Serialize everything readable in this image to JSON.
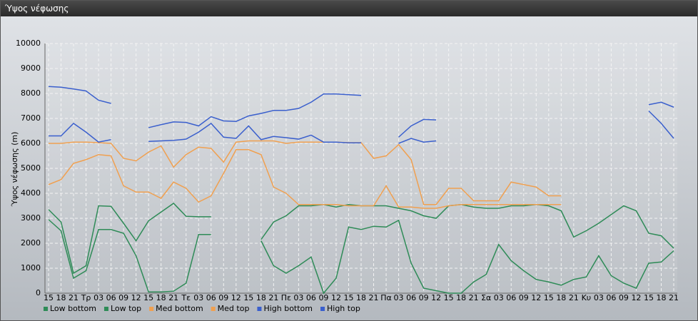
{
  "window_title": "Ύψος νέφωσης",
  "chart_data": {
    "type": "line",
    "ylabel": "Ύψος νέφωσης (m)",
    "categories": [
      "15",
      "18",
      "21",
      "Τρ",
      "03",
      "06",
      "09",
      "12",
      "15",
      "18",
      "21",
      "Τε",
      "03",
      "06",
      "09",
      "12",
      "15",
      "18",
      "21",
      "Πε",
      "03",
      "06",
      "09",
      "12",
      "15",
      "18",
      "21",
      "Πα",
      "03",
      "06",
      "09",
      "12",
      "15",
      "18",
      "21",
      "Σα",
      "03",
      "06",
      "09",
      "12",
      "15",
      "18",
      "21",
      "Κυ",
      "03",
      "06",
      "09",
      "12",
      "15",
      "18",
      "21"
    ],
    "ylim": [
      0,
      10000
    ],
    "yticks": [
      0,
      1000,
      2000,
      3000,
      4000,
      5000,
      6000,
      7000,
      8000,
      9000,
      10000
    ],
    "grid": true,
    "series": [
      {
        "name": "Low bottom",
        "color": "#2e8b57",
        "values": [
          2950,
          2500,
          600,
          900,
          2550,
          2550,
          2400,
          1500,
          50,
          50,
          80,
          400,
          2350,
          2350,
          null,
          null,
          null,
          2100,
          1100,
          800,
          1100,
          1450,
          0,
          600,
          2650,
          2550,
          2680,
          2650,
          2920,
          1200,
          200,
          100,
          0,
          0,
          450,
          750,
          1950,
          1300,
          900,
          550,
          450,
          320,
          550,
          650,
          1500,
          700,
          400,
          200,
          1200,
          1250,
          1700
        ]
      },
      {
        "name": "Low top",
        "color": "#2e8b57",
        "values": [
          3350,
          2850,
          800,
          1100,
          3500,
          3480,
          2800,
          2100,
          2900,
          3250,
          3600,
          3080,
          3060,
          3060,
          null,
          null,
          null,
          2150,
          2850,
          3100,
          3500,
          3500,
          3550,
          3450,
          3550,
          3500,
          3500,
          3500,
          3400,
          3300,
          3100,
          3000,
          3500,
          3550,
          3450,
          3400,
          3400,
          3500,
          3500,
          3550,
          3500,
          3300,
          2250,
          2500,
          2800,
          3150,
          3500,
          3300,
          2400,
          2300,
          1800
        ]
      },
      {
        "name": "Med bottom",
        "color": "#f0a050",
        "values": [
          4350,
          4550,
          5200,
          5350,
          5550,
          5500,
          4300,
          4050,
          4050,
          3800,
          4450,
          4200,
          3650,
          3900,
          4800,
          5750,
          5750,
          5550,
          4250,
          4000,
          3550,
          3550,
          3550,
          3550,
          3500,
          3500,
          3500,
          4300,
          3450,
          3450,
          3400,
          3400,
          3500,
          3550,
          3550,
          3550,
          3550,
          3550,
          3550,
          3550,
          3550,
          3550,
          null,
          null,
          null,
          null,
          null,
          null,
          null,
          null,
          null
        ]
      },
      {
        "name": "Med top",
        "color": "#f0a050",
        "values": [
          6000,
          6000,
          6050,
          6050,
          6030,
          6000,
          5400,
          5300,
          5650,
          5900,
          5050,
          5550,
          5850,
          5800,
          5250,
          6050,
          6100,
          6100,
          6100,
          6000,
          6050,
          6050,
          6050,
          6050,
          6030,
          6030,
          5400,
          5500,
          5950,
          5350,
          3550,
          3550,
          4200,
          4200,
          3700,
          3700,
          3700,
          4450,
          4350,
          4250,
          3900,
          3900,
          null,
          null,
          null,
          null,
          null,
          null,
          null,
          null,
          null
        ]
      },
      {
        "name": "High bottom",
        "color": "#3a5fcd",
        "values": [
          6300,
          6300,
          6800,
          6450,
          6050,
          6150,
          null,
          null,
          6080,
          6100,
          6120,
          6170,
          6450,
          6800,
          6250,
          6200,
          6700,
          6150,
          6280,
          6230,
          6170,
          6330,
          6050,
          6050,
          6020,
          6020,
          null,
          null,
          6000,
          6200,
          6050,
          6100,
          null,
          null,
          null,
          null,
          null,
          null,
          null,
          null,
          null,
          null,
          null,
          null,
          null,
          null,
          null,
          null,
          7300,
          6800,
          6200
        ]
      },
      {
        "name": "High top",
        "color": "#3a5fcd",
        "values": [
          8280,
          8250,
          8180,
          8100,
          7730,
          7600,
          null,
          null,
          6630,
          6750,
          6860,
          6840,
          6700,
          7070,
          6900,
          6880,
          7100,
          7200,
          7320,
          7320,
          7400,
          7650,
          7980,
          7980,
          7950,
          7920,
          null,
          null,
          6250,
          6700,
          6960,
          6940,
          null,
          null,
          null,
          null,
          null,
          null,
          null,
          null,
          null,
          null,
          null,
          null,
          null,
          null,
          null,
          null,
          7550,
          7650,
          7450
        ]
      }
    ]
  }
}
